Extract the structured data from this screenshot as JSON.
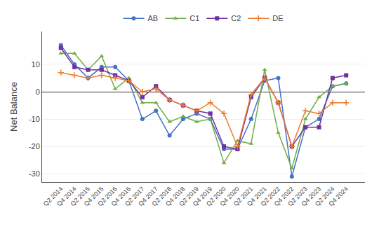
{
  "chart_data": {
    "type": "line",
    "categories": [
      "Q2 2014",
      "Q4 2014",
      "Q2 2015",
      "Q4 2015",
      "Q2 2016",
      "Q4 2016",
      "Q2 2017",
      "Q4 2017",
      "Q2 2018",
      "Q4 2018",
      "Q2 2019",
      "Q4 2019",
      "Q2 2020",
      "Q4 2020",
      "Q2 2021",
      "Q4 2021",
      "Q2 2022",
      "Q4 2022",
      "Q2 2023",
      "Q4 2023",
      "Q2 2024",
      "Q4 2024"
    ],
    "series": [
      {
        "name": "AB",
        "color": "#4472c4",
        "marker": "circle",
        "values": [
          17,
          10,
          5,
          9,
          9,
          4,
          -10,
          -7,
          -16,
          -10,
          -8,
          -10,
          -21,
          -21,
          -10,
          4,
          5,
          -31,
          -13,
          -10,
          2,
          3
        ]
      },
      {
        "name": "C1",
        "color": "#70ad47",
        "marker": "triangle",
        "values": [
          14,
          14,
          8,
          13,
          1,
          5,
          -4,
          -4,
          -11,
          -9,
          -11,
          -10,
          -26,
          -18,
          -19,
          8,
          -15,
          -28,
          -10,
          -2,
          2,
          3
        ]
      },
      {
        "name": "C2",
        "color": "#7030a0",
        "marker": "square",
        "values": [
          16,
          9,
          8,
          8,
          6,
          4,
          -2,
          2,
          -3,
          -5,
          -7,
          -8,
          -20,
          -21,
          -2,
          5,
          -4,
          -20,
          -13,
          -13,
          5,
          6
        ]
      },
      {
        "name": "DE",
        "color": "#ed7d31",
        "marker": "plus",
        "values": [
          7,
          6,
          5,
          6,
          5,
          4,
          0,
          1,
          -3,
          -5,
          -7,
          -4,
          -8,
          -20,
          -1,
          5,
          -4,
          -20,
          -7,
          -8,
          -4,
          -4
        ]
      }
    ],
    "ylabel": "Net Balance",
    "ylim": [
      -33,
      22
    ],
    "yticks": [
      -30,
      -20,
      -10,
      0,
      10
    ],
    "grid": true,
    "legend": "top"
  }
}
